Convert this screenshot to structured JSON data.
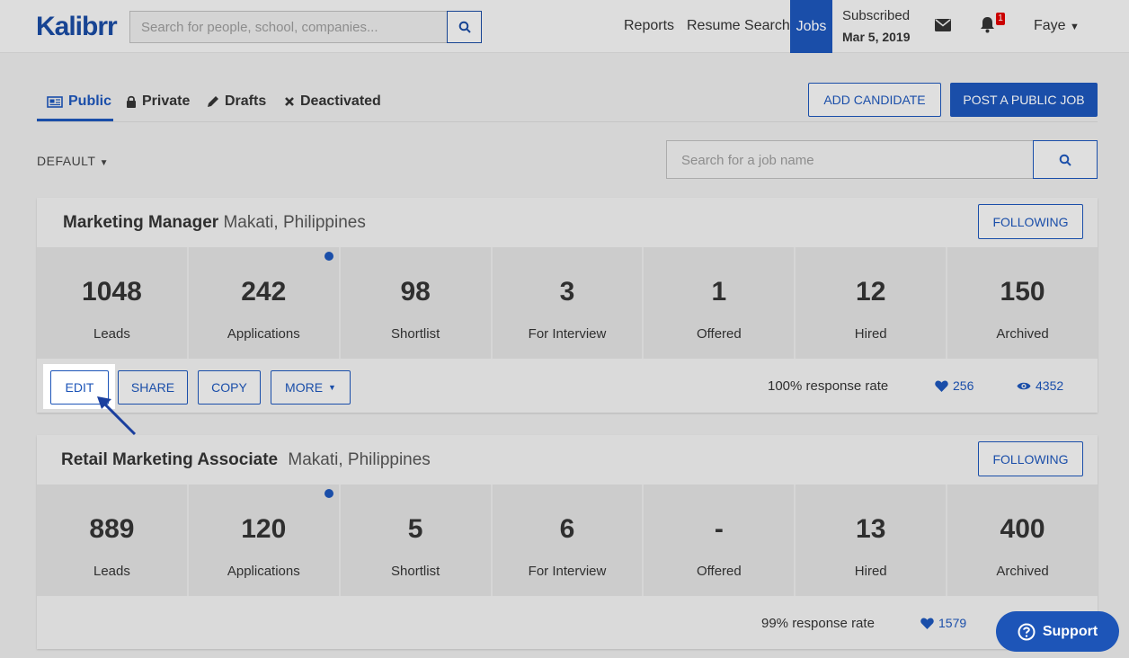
{
  "nav": {
    "logo": "Kalibrr",
    "search_placeholder": "Search for people, school, companies...",
    "reports": "Reports",
    "resume_search": "Resume Search",
    "jobs": "Jobs",
    "subscribed_label": "Subscribed",
    "subscribed_date": "Mar 5, 2019",
    "notification_count": "1",
    "user": "Faye"
  },
  "tabs": [
    {
      "label": "Public"
    },
    {
      "label": "Private"
    },
    {
      "label": "Drafts"
    },
    {
      "label": "Deactivated"
    }
  ],
  "actions": {
    "add_candidate": "ADD CANDIDATE",
    "post_public_job": "POST A PUBLIC JOB"
  },
  "filters": {
    "sort": "DEFAULT",
    "job_search_placeholder": "Search for a job name"
  },
  "jobs": [
    {
      "title": "Marketing Manager",
      "location": "Makati, Philippines",
      "follow_label": "FOLLOWING",
      "stats": [
        {
          "value": "1048",
          "label": "Leads"
        },
        {
          "value": "242",
          "label": "Applications"
        },
        {
          "value": "98",
          "label": "Shortlist"
        },
        {
          "value": "3",
          "label": "For Interview"
        },
        {
          "value": "1",
          "label": "Offered"
        },
        {
          "value": "12",
          "label": "Hired"
        },
        {
          "value": "150",
          "label": "Archived"
        }
      ],
      "buttons": {
        "edit": "EDIT",
        "share": "SHARE",
        "copy": "COPY",
        "more": "MORE"
      },
      "response_rate": "100% response rate",
      "likes": "256",
      "views": "4352"
    },
    {
      "title": "Retail Marketing Associate",
      "location": "Makati, Philippines",
      "follow_label": "FOLLOWING",
      "stats": [
        {
          "value": "889",
          "label": "Leads"
        },
        {
          "value": "120",
          "label": "Applications"
        },
        {
          "value": "5",
          "label": "Shortlist"
        },
        {
          "value": "6",
          "label": "For Interview"
        },
        {
          "value": "-",
          "label": "Offered"
        },
        {
          "value": "13",
          "label": "Hired"
        },
        {
          "value": "400",
          "label": "Archived"
        }
      ],
      "response_rate": "99% response rate",
      "likes": "1579"
    }
  ],
  "support": {
    "label": "Support"
  },
  "colors": {
    "accent": "#1d55b8"
  }
}
